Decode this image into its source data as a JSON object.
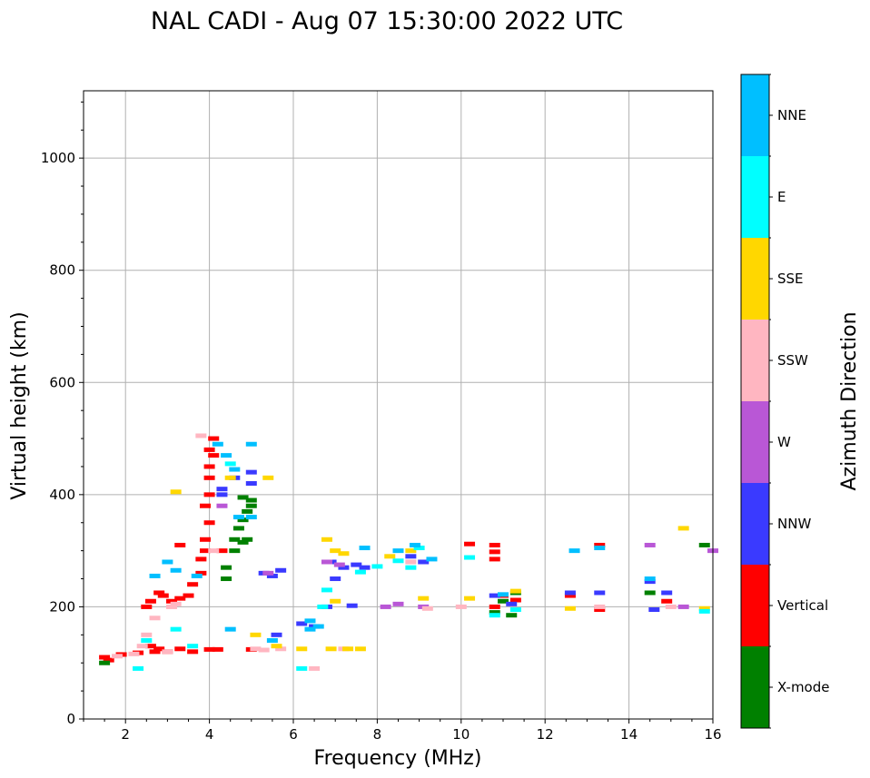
{
  "chart_data": {
    "type": "scatter",
    "title": "NAL CADI - Aug 07 15:30:00 2022 UTC",
    "xlabel": "Frequency (MHz)",
    "ylabel": "Virtual height (km)",
    "xlim": [
      1,
      16
    ],
    "ylim": [
      0,
      1120
    ],
    "x_ticks": [
      "2",
      "4",
      "6",
      "8",
      "10",
      "12",
      "14",
      "16"
    ],
    "y_ticks": [
      "0",
      "200",
      "400",
      "600",
      "800",
      "1000"
    ],
    "grid": true,
    "colorbar": {
      "label": "Azimuth Direction",
      "categories": [
        {
          "name": "X-mode",
          "color": "#008000"
        },
        {
          "name": "Vertical",
          "color": "#ff0000"
        },
        {
          "name": "NNW",
          "color": "#3a3aff"
        },
        {
          "name": "W",
          "color": "#b957d6"
        },
        {
          "name": "SSW",
          "color": "#ffb6c1"
        },
        {
          "name": "SSE",
          "color": "#ffd700"
        },
        {
          "name": "E",
          "color": "#00ffff"
        },
        {
          "name": "NNE",
          "color": "#00bfff"
        }
      ]
    },
    "series": [
      {
        "name": "Vertical",
        "points": [
          [
            1.5,
            110
          ],
          [
            1.6,
            105
          ],
          [
            1.9,
            115
          ],
          [
            2.3,
            118
          ],
          [
            2.6,
            130
          ],
          [
            2.7,
            120
          ],
          [
            2.8,
            125
          ],
          [
            3.0,
            120
          ],
          [
            3.3,
            125
          ],
          [
            3.6,
            120
          ],
          [
            4.0,
            124
          ],
          [
            4.2,
            124
          ],
          [
            5.0,
            124
          ],
          [
            2.5,
            200
          ],
          [
            2.6,
            210
          ],
          [
            2.8,
            225
          ],
          [
            2.9,
            220
          ],
          [
            3.1,
            210
          ],
          [
            3.3,
            215
          ],
          [
            3.5,
            220
          ],
          [
            3.6,
            240
          ],
          [
            3.8,
            260
          ],
          [
            3.8,
            285
          ],
          [
            3.9,
            300
          ],
          [
            3.9,
            320
          ],
          [
            4.0,
            350
          ],
          [
            3.9,
            380
          ],
          [
            4.0,
            400
          ],
          [
            4.0,
            430
          ],
          [
            4.0,
            450
          ],
          [
            4.1,
            470
          ],
          [
            4.0,
            480
          ],
          [
            4.1,
            500
          ],
          [
            10.2,
            312
          ],
          [
            10.8,
            310
          ],
          [
            10.8,
            298
          ],
          [
            10.8,
            285
          ],
          [
            10.8,
            200
          ],
          [
            11.0,
            220
          ],
          [
            11.3,
            212
          ],
          [
            12.6,
            220
          ],
          [
            13.3,
            195
          ],
          [
            13.3,
            310
          ],
          [
            14.9,
            210
          ],
          [
            3.3,
            310
          ],
          [
            4.3,
            300
          ]
        ]
      },
      {
        "name": "X-mode",
        "points": [
          [
            4.4,
            270
          ],
          [
            4.4,
            250
          ],
          [
            4.6,
            300
          ],
          [
            4.6,
            320
          ],
          [
            4.7,
            340
          ],
          [
            4.8,
            355
          ],
          [
            4.8,
            315
          ],
          [
            5.0,
            390
          ],
          [
            4.9,
            370
          ],
          [
            5.0,
            380
          ],
          [
            4.8,
            395
          ],
          [
            1.5,
            100
          ],
          [
            10.8,
            190
          ],
          [
            11.2,
            185
          ],
          [
            11.3,
            225
          ],
          [
            14.5,
            225
          ],
          [
            15.8,
            310
          ],
          [
            11.0,
            210
          ],
          [
            4.9,
            320
          ]
        ]
      },
      {
        "name": "NNW",
        "points": [
          [
            4.3,
            400
          ],
          [
            4.3,
            410
          ],
          [
            5.0,
            420
          ],
          [
            5.0,
            440
          ],
          [
            4.6,
            430
          ],
          [
            5.3,
            260
          ],
          [
            5.5,
            255
          ],
          [
            5.7,
            265
          ],
          [
            5.6,
            150
          ],
          [
            6.2,
            170
          ],
          [
            6.5,
            165
          ],
          [
            6.9,
            280
          ],
          [
            7.0,
            250
          ],
          [
            7.2,
            270
          ],
          [
            7.5,
            275
          ],
          [
            7.7,
            270
          ],
          [
            8.8,
            290
          ],
          [
            9.1,
            280
          ],
          [
            10.8,
            220
          ],
          [
            11.2,
            205
          ],
          [
            12.6,
            225
          ],
          [
            13.3,
            225
          ],
          [
            14.5,
            245
          ],
          [
            14.9,
            225
          ],
          [
            14.6,
            195
          ],
          [
            6.8,
            200
          ],
          [
            7.4,
            202
          ]
        ]
      },
      {
        "name": "W",
        "points": [
          [
            4.3,
            380
          ],
          [
            6.8,
            280
          ],
          [
            7.1,
            275
          ],
          [
            8.2,
            200
          ],
          [
            8.5,
            205
          ],
          [
            9.1,
            200
          ],
          [
            14.5,
            310
          ],
          [
            15.3,
            200
          ],
          [
            16.0,
            300
          ],
          [
            5.4,
            260
          ]
        ]
      },
      {
        "name": "SSW",
        "points": [
          [
            1.8,
            112
          ],
          [
            2.2,
            116
          ],
          [
            2.4,
            130
          ],
          [
            2.5,
            150
          ],
          [
            2.7,
            180
          ],
          [
            3.0,
            120
          ],
          [
            3.1,
            200
          ],
          [
            3.2,
            205
          ],
          [
            3.8,
            505
          ],
          [
            4.1,
            300
          ],
          [
            5.1,
            125
          ],
          [
            5.3,
            123
          ],
          [
            5.7,
            125
          ],
          [
            6.5,
            90
          ],
          [
            7.2,
            125
          ],
          [
            8.8,
            280
          ],
          [
            9.2,
            197
          ],
          [
            10.0,
            200
          ],
          [
            13.3,
            200
          ],
          [
            15.0,
            200
          ]
        ]
      },
      {
        "name": "SSE",
        "points": [
          [
            3.2,
            405
          ],
          [
            4.5,
            430
          ],
          [
            5.4,
            430
          ],
          [
            5.1,
            150
          ],
          [
            5.6,
            130
          ],
          [
            6.2,
            125
          ],
          [
            6.9,
            125
          ],
          [
            7.3,
            125
          ],
          [
            7.6,
            125
          ],
          [
            6.8,
            320
          ],
          [
            7.0,
            300
          ],
          [
            7.2,
            295
          ],
          [
            8.3,
            290
          ],
          [
            8.8,
            300
          ],
          [
            9.1,
            215
          ],
          [
            10.2,
            215
          ],
          [
            11.3,
            228
          ],
          [
            12.6,
            197
          ],
          [
            15.3,
            340
          ],
          [
            15.8,
            197
          ],
          [
            7.0,
            210
          ]
        ]
      },
      {
        "name": "E",
        "points": [
          [
            2.3,
            90
          ],
          [
            3.2,
            160
          ],
          [
            4.5,
            455
          ],
          [
            6.2,
            90
          ],
          [
            6.7,
            200
          ],
          [
            6.8,
            230
          ],
          [
            7.6,
            262
          ],
          [
            8.0,
            272
          ],
          [
            8.5,
            282
          ],
          [
            8.8,
            270
          ],
          [
            9.0,
            305
          ],
          [
            10.2,
            288
          ],
          [
            10.8,
            185
          ],
          [
            11.3,
            195
          ],
          [
            15.8,
            192
          ],
          [
            2.5,
            140
          ],
          [
            3.6,
            130
          ]
        ]
      },
      {
        "name": "NNE",
        "points": [
          [
            4.2,
            490
          ],
          [
            5.0,
            490
          ],
          [
            4.4,
            470
          ],
          [
            4.6,
            445
          ],
          [
            4.7,
            360
          ],
          [
            5.0,
            360
          ],
          [
            4.5,
            160
          ],
          [
            5.5,
            140
          ],
          [
            6.4,
            160
          ],
          [
            6.6,
            165
          ],
          [
            6.4,
            175
          ],
          [
            7.7,
            305
          ],
          [
            8.5,
            300
          ],
          [
            8.9,
            310
          ],
          [
            9.3,
            285
          ],
          [
            12.7,
            300
          ],
          [
            13.3,
            305
          ],
          [
            14.5,
            250
          ],
          [
            11.0,
            222
          ],
          [
            3.2,
            265
          ],
          [
            3.7,
            255
          ],
          [
            2.7,
            255
          ],
          [
            3.0,
            280
          ]
        ]
      }
    ]
  }
}
